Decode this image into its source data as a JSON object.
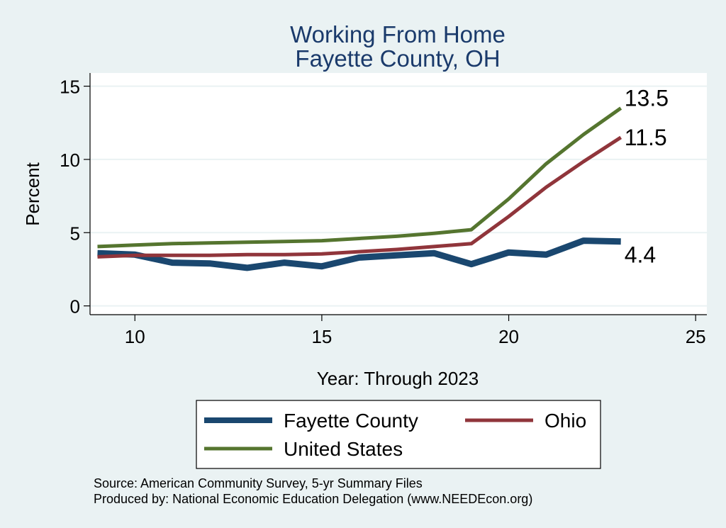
{
  "chart_data": {
    "type": "line",
    "title": [
      "Working From Home",
      "Fayette County, OH"
    ],
    "xlabel": "Year: Through 2023",
    "ylabel": "Percent",
    "xlim": [
      8.8,
      25.3
    ],
    "ylim": [
      -0.6,
      15.9
    ],
    "xticks": [
      10,
      15,
      20,
      25
    ],
    "yticks": [
      0,
      5,
      10,
      15
    ],
    "grid": true,
    "legend_position": "bottom",
    "x": [
      9,
      10,
      11,
      12,
      13,
      14,
      15,
      16,
      17,
      18,
      19,
      20,
      21,
      22,
      23
    ],
    "series": [
      {
        "name": "Fayette County",
        "color": "#1a476f",
        "values": [
          3.6,
          3.5,
          2.95,
          2.9,
          2.6,
          2.95,
          2.7,
          3.3,
          3.45,
          3.6,
          2.85,
          3.65,
          3.5,
          4.45,
          4.4
        ],
        "end_label": "4.4"
      },
      {
        "name": "Ohio",
        "color": "#90353b",
        "values": [
          3.35,
          3.45,
          3.45,
          3.45,
          3.5,
          3.5,
          3.55,
          3.7,
          3.85,
          4.05,
          4.25,
          6.1,
          8.1,
          9.85,
          11.5
        ],
        "end_label": "11.5"
      },
      {
        "name": "United States",
        "color": "#55752f",
        "values": [
          4.05,
          4.15,
          4.25,
          4.3,
          4.35,
          4.4,
          4.45,
          4.6,
          4.75,
          4.95,
          5.2,
          7.3,
          9.7,
          11.7,
          13.5
        ],
        "end_label": "13.5"
      }
    ]
  },
  "legend": {
    "items": [
      {
        "label": "Fayette County",
        "color": "#1a476f"
      },
      {
        "label": "Ohio",
        "color": "#90353b"
      },
      {
        "label": "United States",
        "color": "#55752f"
      }
    ]
  },
  "notes": {
    "source": "Source: American Community Survey, 5-yr Summary Files",
    "produced": "Produced by: National Economic Education Delegation (www.NEEDEcon.org)"
  }
}
